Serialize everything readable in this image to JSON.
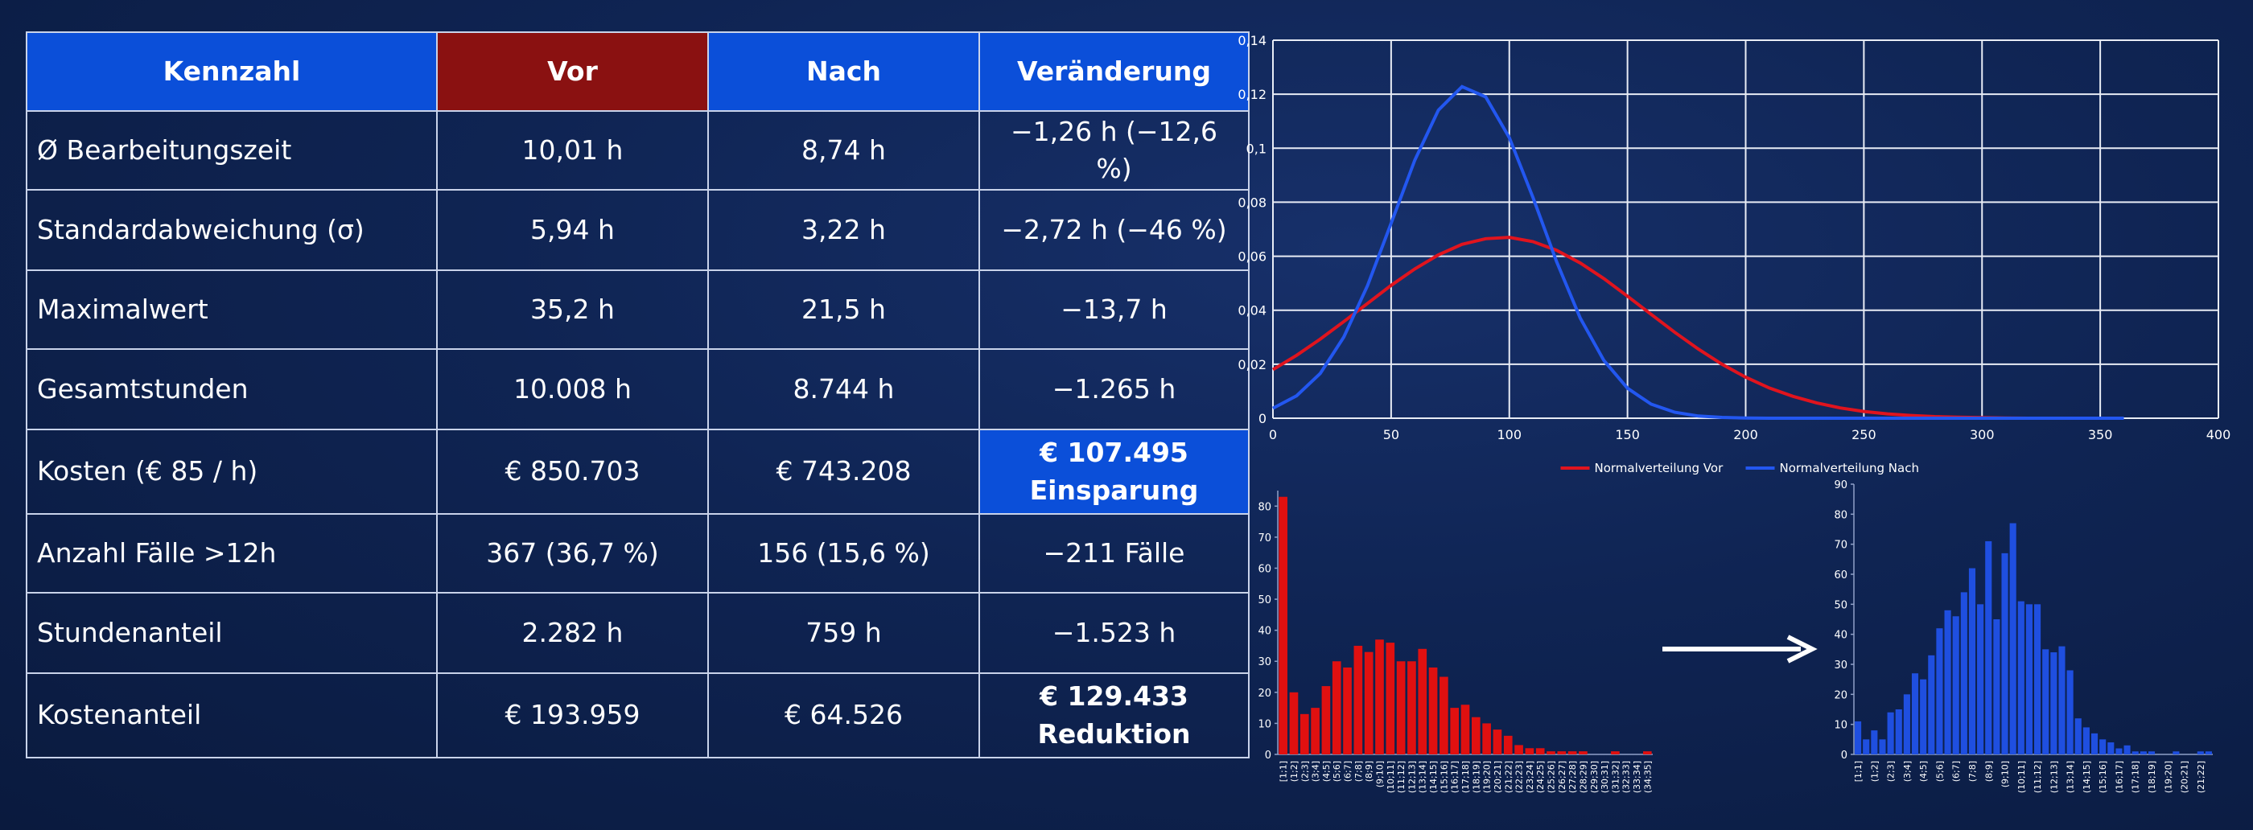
{
  "table": {
    "header": [
      "Kennzahl",
      "Vor",
      "Nach",
      "Veränderung"
    ],
    "rows": [
      [
        "Ø Bearbeitungszeit",
        "10,01 h",
        "8,74 h",
        "−1,26 h (−12,6 %)"
      ],
      [
        "Standardabweichung (σ)",
        "5,94 h",
        "3,22 h",
        "−2,72 h (−46 %)"
      ],
      [
        "Maximalwert",
        "35,2 h",
        "21,5 h",
        "−13,7 h"
      ],
      [
        "Gesamtstunden",
        "10.008 h",
        "8.744 h",
        "−1.265 h"
      ],
      [
        "Kosten (€ 85 / h)",
        "€ 850.703",
        "€ 743.208",
        "€ 107.495\nEinsparung"
      ],
      [
        "Anzahl Fälle >12h",
        "367 (36,7 %)",
        "156 (15,6 %)",
        "−211 Fälle"
      ],
      [
        "Stundenanteil",
        "2.282 h",
        "759 h",
        "−1.523 h"
      ],
      [
        "Kostenanteil",
        "€ 193.959",
        "€ 64.526",
        "€ 129.433\nReduktion"
      ]
    ]
  },
  "chart_data": [
    {
      "type": "line",
      "x": [
        0,
        10,
        20,
        30,
        40,
        50,
        60,
        70,
        80,
        90,
        100,
        110,
        120,
        130,
        140,
        150,
        160,
        170,
        180,
        190,
        200,
        210,
        220,
        230,
        240,
        250,
        260,
        270,
        280,
        290,
        300,
        310,
        320,
        330,
        340,
        350,
        360
      ],
      "series": [
        {
          "name": "Normalverteilung Vor",
          "color": "#e0141e",
          "values": [
            0.018,
            0.0233,
            0.0293,
            0.0358,
            0.0425,
            0.0492,
            0.0553,
            0.0605,
            0.0644,
            0.0665,
            0.067,
            0.0654,
            0.0622,
            0.0575,
            0.0517,
            0.0452,
            0.0385,
            0.0318,
            0.0256,
            0.02,
            0.0152,
            0.0112,
            0.0081,
            0.0057,
            0.0038,
            0.0025,
            0.0016,
            0.001,
            0.0006,
            0.0004,
            0.0002,
            0.0001,
            0,
            0,
            0,
            0,
            0
          ]
        },
        {
          "name": "Normalverteilung Nach",
          "color": "#2357f0",
          "values": [
            0.0037,
            0.0083,
            0.0166,
            0.0301,
            0.0491,
            0.0722,
            0.0956,
            0.1141,
            0.1228,
            0.119,
            0.1039,
            0.0818,
            0.058,
            0.0371,
            0.0214,
            0.0111,
            0.0052,
            0.0022,
            0.0008,
            0.0003,
            0.0001,
            0,
            0,
            0,
            0,
            0,
            0,
            0,
            0,
            0,
            0,
            0,
            0,
            0,
            0,
            0,
            0
          ]
        }
      ],
      "xlim": [
        0,
        400
      ],
      "xticks": [
        0,
        50,
        100,
        150,
        200,
        250,
        300,
        350,
        400
      ],
      "ylim": [
        0,
        0.14
      ],
      "yticks": [
        0,
        {
          "value": 0.02,
          "label": "0,02"
        },
        {
          "value": 0.04,
          "label": "0,04"
        },
        {
          "value": 0.06,
          "label": "0,06"
        },
        {
          "value": 0.08,
          "label": "0,08"
        },
        {
          "value": 0.1,
          "label": "0,1"
        },
        {
          "value": 0.12,
          "label": "0,12"
        },
        {
          "value": 0.14,
          "label": "0,14"
        }
      ],
      "grid": true,
      "legend": "bottom"
    },
    {
      "type": "bar",
      "color": "#e01010",
      "categories": [
        "[1;1]",
        "(1;2]",
        "(2;3]",
        "(3;4]",
        "(4;5]",
        "(5;6]",
        "(6;7]",
        "(7;8]",
        "(8;9]",
        "(9;10]",
        "(10;11]",
        "(11;12]",
        "(12;13]",
        "(13;14]",
        "(14;15]",
        "(15;16]",
        "(16;17]",
        "(17;18]",
        "(18;19]",
        "(19;20]",
        "(20;21]",
        "(21;22]",
        "(22;23]",
        "(23;24]",
        "(24;25]",
        "(25;26]",
        "(26;27]",
        "(27;28]",
        "(28;29]",
        "(29;30]",
        "(30;31]",
        "(31;32]",
        "(32;33]",
        "(33;34]",
        "(34;35]"
      ],
      "values": [
        83,
        20,
        13,
        15,
        22,
        30,
        28,
        35,
        33,
        37,
        36,
        30,
        30,
        34,
        28,
        25,
        15,
        16,
        12,
        10,
        8,
        6,
        3,
        2,
        2,
        1,
        1,
        1,
        1,
        0,
        0,
        1,
        0,
        0,
        1
      ],
      "ylim": [
        0,
        85
      ],
      "yticks": [
        0,
        10,
        20,
        30,
        40,
        50,
        60,
        70,
        80
      ],
      "grid": false
    },
    {
      "type": "bar",
      "color": "#1f4fe0",
      "categories": [
        "[1;1]",
        null,
        "(1;2]",
        null,
        "(2;3]",
        null,
        "(3;4]",
        null,
        "(4;5]",
        null,
        "(5;6]",
        null,
        "(6;7]",
        null,
        "(7;8]",
        null,
        "(8;9]",
        null,
        "(9;10]",
        null,
        "(10;11]",
        null,
        "(11;12]",
        null,
        "(12;13]",
        null,
        "(13;14]",
        null,
        "(14;15]",
        null,
        "(15;16]",
        null,
        "(16;17]",
        null,
        "(17;18]",
        null,
        "(18;19]",
        null,
        "(19;20]",
        null,
        "(20;21]",
        null,
        "(21;22]",
        null
      ],
      "values": [
        11,
        5,
        8,
        5,
        14,
        15,
        20,
        27,
        25,
        33,
        42,
        48,
        46,
        54,
        62,
        50,
        71,
        45,
        67,
        77,
        51,
        50,
        50,
        35,
        34,
        36,
        28,
        12,
        9,
        7,
        5,
        4,
        2,
        3,
        1,
        1,
        1,
        0,
        0,
        1,
        0,
        0,
        1,
        1
      ],
      "ylim": [
        0,
        90
      ],
      "yticks": [
        0,
        10,
        20,
        30,
        40,
        50,
        60,
        70,
        80,
        90
      ],
      "grid": false
    }
  ]
}
